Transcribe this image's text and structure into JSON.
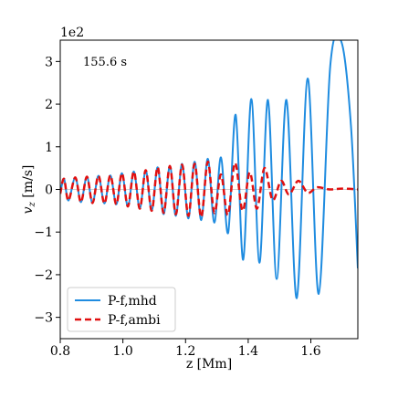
{
  "chart_data": {
    "type": "line",
    "title": "",
    "xlabel": "z [Mm]",
    "ylabel": "v_z [m/s]",
    "ylabel_main": "v",
    "ylabel_sub": "z",
    "ylabel_unit": " [m/s]",
    "offset_text": "1e2",
    "annotation": "155.6 s",
    "xlim": [
      0.8,
      1.75
    ],
    "ylim": [
      -3.5,
      3.5
    ],
    "x_ticks": [
      0.8,
      1.0,
      1.2,
      1.4,
      1.6
    ],
    "x_tick_labels": [
      "0.8",
      "1.0",
      "1.2",
      "1.4",
      "1.6"
    ],
    "y_ticks": [
      -3,
      -2,
      -1,
      0,
      1,
      2,
      3
    ],
    "y_tick_labels": [
      "−3",
      "−2",
      "−1",
      "0",
      "1",
      "2",
      "3"
    ],
    "grid": false,
    "legend_position": "lower-left",
    "series": [
      {
        "name": "P-f,mhd",
        "color": "#1f8ce0",
        "style": "solid",
        "points": [
          [
            0.8,
            -0.1
          ],
          [
            0.812,
            0.25
          ],
          [
            0.826,
            -0.26
          ],
          [
            0.848,
            0.28
          ],
          [
            0.866,
            -0.3
          ],
          [
            0.885,
            0.3
          ],
          [
            0.903,
            -0.32
          ],
          [
            0.922,
            0.32
          ],
          [
            0.941,
            -0.33
          ],
          [
            0.96,
            0.33
          ],
          [
            0.979,
            -0.35
          ],
          [
            0.997,
            0.38
          ],
          [
            1.016,
            -0.4
          ],
          [
            1.035,
            0.42
          ],
          [
            1.054,
            -0.45
          ],
          [
            1.073,
            0.45
          ],
          [
            1.092,
            -0.5
          ],
          [
            1.111,
            0.52
          ],
          [
            1.13,
            -0.58
          ],
          [
            1.15,
            0.55
          ],
          [
            1.169,
            -0.62
          ],
          [
            1.189,
            0.6
          ],
          [
            1.209,
            -0.68
          ],
          [
            1.229,
            0.65
          ],
          [
            1.25,
            -0.72
          ],
          [
            1.271,
            0.72
          ],
          [
            1.292,
            -0.78
          ],
          [
            1.313,
            0.75
          ],
          [
            1.336,
            -1.02
          ],
          [
            1.36,
            1.75
          ],
          [
            1.384,
            -1.65
          ],
          [
            1.41,
            2.12
          ],
          [
            1.436,
            -1.72
          ],
          [
            1.463,
            2.1
          ],
          [
            1.491,
            -2.1
          ],
          [
            1.522,
            2.1
          ],
          [
            1.555,
            -2.55
          ],
          [
            1.59,
            2.6
          ],
          [
            1.625,
            -2.45
          ],
          [
            1.662,
            2.9
          ],
          [
            1.698,
            3.45
          ],
          [
            1.728,
            1.5
          ],
          [
            1.75,
            -1.85
          ]
        ]
      },
      {
        "name": "P-f,ambi",
        "color": "#e01010",
        "style": "dashed",
        "points": [
          [
            0.8,
            -0.1
          ],
          [
            0.812,
            0.25
          ],
          [
            0.826,
            -0.26
          ],
          [
            0.848,
            0.28
          ],
          [
            0.866,
            -0.3
          ],
          [
            0.885,
            0.3
          ],
          [
            0.903,
            -0.32
          ],
          [
            0.922,
            0.32
          ],
          [
            0.941,
            -0.33
          ],
          [
            0.96,
            0.33
          ],
          [
            0.979,
            -0.35
          ],
          [
            0.997,
            0.38
          ],
          [
            1.016,
            -0.4
          ],
          [
            1.035,
            0.42
          ],
          [
            1.054,
            -0.45
          ],
          [
            1.073,
            0.45
          ],
          [
            1.092,
            -0.5
          ],
          [
            1.111,
            0.52
          ],
          [
            1.13,
            -0.55
          ],
          [
            1.15,
            0.55
          ],
          [
            1.169,
            -0.58
          ],
          [
            1.189,
            0.58
          ],
          [
            1.209,
            -0.62
          ],
          [
            1.229,
            0.6
          ],
          [
            1.25,
            -0.65
          ],
          [
            1.271,
            0.65
          ],
          [
            1.292,
            -0.55
          ],
          [
            1.313,
            0.35
          ],
          [
            1.335,
            -0.6
          ],
          [
            1.358,
            0.62
          ],
          [
            1.382,
            -0.5
          ],
          [
            1.405,
            0.4
          ],
          [
            1.428,
            -0.45
          ],
          [
            1.452,
            0.5
          ],
          [
            1.478,
            -0.25
          ],
          [
            1.505,
            0.2
          ],
          [
            1.53,
            -0.12
          ],
          [
            1.56,
            0.2
          ],
          [
            1.59,
            -0.08
          ],
          [
            1.62,
            0.05
          ],
          [
            1.66,
            0.0
          ],
          [
            1.7,
            0.02
          ],
          [
            1.75,
            0.0
          ]
        ]
      }
    ]
  }
}
